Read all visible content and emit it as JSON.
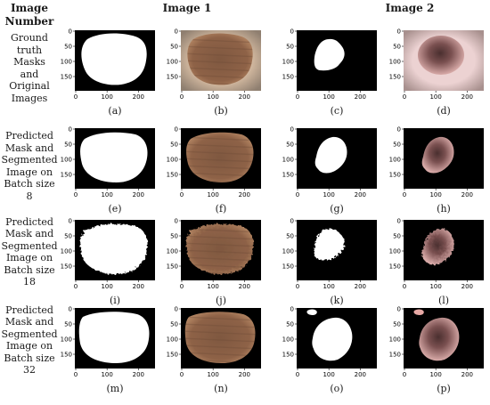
{
  "headers": {
    "image_number": [
      "Image",
      "Number"
    ],
    "image1": "Image 1",
    "image2": "Image 2"
  },
  "row_labels": [
    [
      "Ground",
      "truth Masks",
      "and",
      "Original",
      "Images"
    ],
    [
      "Predicted",
      "Mask and",
      "Segmented",
      "Image on",
      "Batch size 8"
    ],
    [
      "Predicted",
      "Mask and",
      "Segmented",
      "Image on",
      "Batch size",
      "18"
    ],
    [
      "Predicted",
      "Mask and",
      "Segmented",
      "Image on",
      "Batch size",
      "32"
    ]
  ],
  "axis": {
    "y_ticks": [
      "0",
      "50",
      "100",
      "150"
    ],
    "x_ticks": [
      "0",
      "100",
      "200"
    ]
  },
  "captions": [
    [
      "(a)",
      "(b)",
      "(c)",
      "(d)"
    ],
    [
      "(e)",
      "(f)",
      "(g)",
      "(h)"
    ],
    [
      "(i)",
      "(j)",
      "(k)",
      "(l)"
    ],
    [
      "(m)",
      "(n)",
      "(o)",
      "(p)"
    ]
  ],
  "colors": {
    "mask_bg": "#000000",
    "mask_fg": "#ffffff",
    "lesion1_skin": "#d9bea4",
    "lesion1_brown": "#8e6247",
    "lesion2_skin": "#ecd2d2",
    "lesion2_dark": "#4a2f2f"
  }
}
